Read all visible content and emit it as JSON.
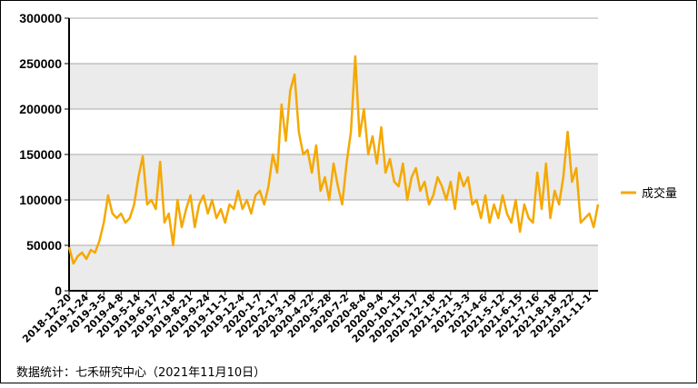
{
  "chart_data": {
    "type": "line",
    "categories": [
      "2018-12-20",
      null,
      null,
      null,
      "2019-1-24",
      null,
      null,
      null,
      "2019-3-5",
      null,
      null,
      null,
      "2019-4-8",
      null,
      null,
      null,
      "2019-5-14",
      null,
      null,
      null,
      "2019-6-17",
      null,
      null,
      null,
      "2019-7-18",
      null,
      null,
      null,
      "2019-8-21",
      null,
      null,
      null,
      "2019-9-24",
      null,
      null,
      null,
      "2019-11-1",
      null,
      null,
      null,
      "2019-12-4",
      null,
      null,
      null,
      "2020-1-7",
      null,
      null,
      null,
      "2020-2-17",
      null,
      null,
      null,
      "2020-3-19",
      null,
      null,
      null,
      "2020-4-22",
      null,
      null,
      null,
      "2020-5-28",
      null,
      null,
      null,
      "2020-7-2",
      null,
      null,
      null,
      "2020-8-4",
      null,
      null,
      null,
      "2020-9-4",
      null,
      null,
      null,
      "2020-10-15",
      null,
      null,
      null,
      "2020-11-17",
      null,
      null,
      null,
      "2020-12-18",
      null,
      null,
      null,
      "2021-1-21",
      null,
      null,
      null,
      "2021-3-3",
      null,
      null,
      null,
      "2021-4-6",
      null,
      null,
      null,
      "2021-5-12",
      null,
      null,
      null,
      "2021-6-15",
      null,
      null,
      null,
      "2021-7-16",
      null,
      null,
      null,
      "2021-8-18",
      null,
      null,
      null,
      "2021-9-22",
      null,
      null,
      null,
      "2021-11-1",
      null,
      null
    ],
    "series": [
      {
        "name": "成交量",
        "color": "#f5a800",
        "values": [
          48000,
          30000,
          38000,
          42000,
          35000,
          45000,
          42000,
          55000,
          75000,
          105000,
          85000,
          80000,
          85000,
          75000,
          80000,
          95000,
          125000,
          148000,
          95000,
          100000,
          90000,
          142000,
          75000,
          85000,
          50000,
          100000,
          70000,
          90000,
          105000,
          70000,
          95000,
          105000,
          85000,
          100000,
          80000,
          90000,
          75000,
          95000,
          90000,
          110000,
          90000,
          100000,
          85000,
          105000,
          110000,
          95000,
          115000,
          150000,
          130000,
          205000,
          165000,
          220000,
          238000,
          175000,
          150000,
          155000,
          130000,
          160000,
          110000,
          125000,
          100000,
          140000,
          115000,
          95000,
          140000,
          175000,
          258000,
          170000,
          200000,
          150000,
          170000,
          140000,
          180000,
          130000,
          145000,
          120000,
          115000,
          140000,
          100000,
          125000,
          135000,
          110000,
          120000,
          95000,
          105000,
          125000,
          115000,
          100000,
          120000,
          90000,
          130000,
          115000,
          125000,
          95000,
          100000,
          80000,
          105000,
          75000,
          95000,
          80000,
          105000,
          85000,
          75000,
          100000,
          65000,
          95000,
          80000,
          75000,
          130000,
          90000,
          140000,
          80000,
          110000,
          95000,
          125000,
          175000,
          120000,
          135000,
          75000,
          80000,
          85000,
          70000,
          95000
        ]
      }
    ],
    "ylim": [
      0,
      300000
    ],
    "yticks": [
      0,
      50000,
      100000,
      150000,
      200000,
      250000,
      300000
    ],
    "grid": true,
    "footnote": "数据统计：七禾研究中心（2021年11月10日）"
  }
}
